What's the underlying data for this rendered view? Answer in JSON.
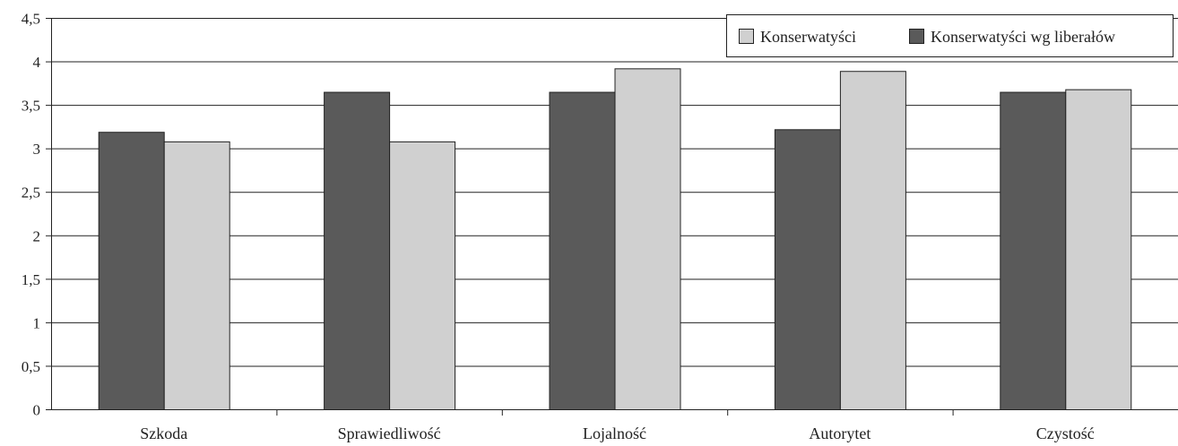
{
  "chart_data": {
    "type": "bar",
    "categories": [
      "Szkoda",
      "Sprawiedliwość",
      "Lojalność",
      "Autorytet",
      "Czystość"
    ],
    "series": [
      {
        "name": "Konserwatyści wg liberałów",
        "color": "#5a5a5a",
        "values": [
          3.19,
          3.65,
          3.65,
          3.22,
          3.65
        ]
      },
      {
        "name": "Konserwatyści",
        "color": "#d0d0d0",
        "values": [
          3.08,
          3.08,
          3.92,
          3.89,
          3.68
        ]
      }
    ],
    "legend_order": [
      1,
      0
    ],
    "legend_placement": "top-right",
    "ylim": [
      0,
      4.5
    ],
    "yticks": [
      0,
      0.5,
      1,
      1.5,
      2,
      2.5,
      3,
      3.5,
      4,
      4.5
    ],
    "ytick_labels": [
      "0",
      "0,5",
      "1",
      "1,5",
      "2",
      "2,5",
      "3",
      "3,5",
      "4",
      "4,5"
    ],
    "grid": true,
    "title": "",
    "xlabel": "",
    "ylabel": ""
  }
}
